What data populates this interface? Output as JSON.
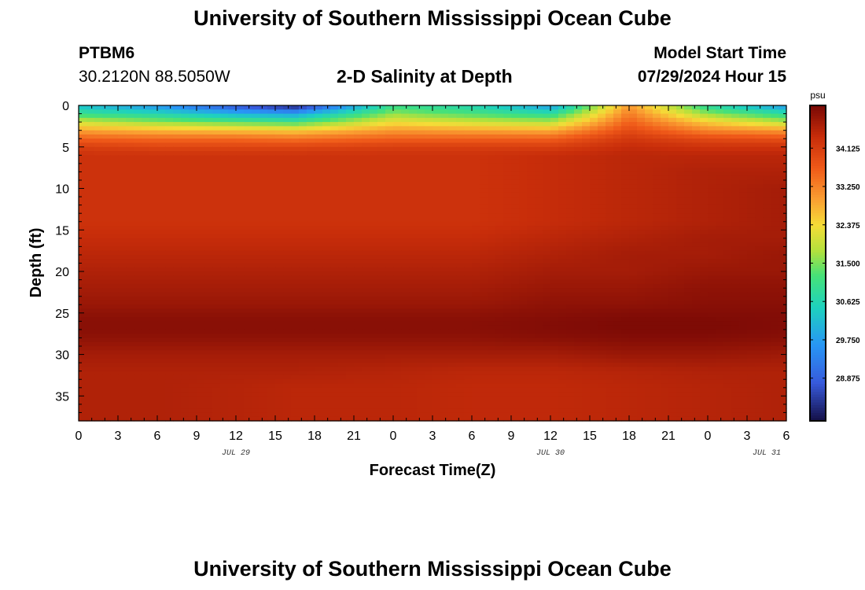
{
  "header": {
    "title": "University of Southern Mississippi Ocean Cube",
    "station": "PTBM6",
    "coords": "30.2120N  88.5050W",
    "subtitle": "2-D Salinity at Depth",
    "model_start_label": "Model Start Time",
    "model_start_value": "07/29/2024 Hour 15"
  },
  "footer": {
    "title": "University of Southern Mississippi Ocean Cube"
  },
  "chart_data": {
    "type": "heatmap",
    "title": "2-D Salinity at Depth",
    "xlabel": "Forecast Time(Z)",
    "ylabel": "Depth (ft)",
    "xlim": [
      0,
      54
    ],
    "ylim": [
      0,
      38
    ],
    "x_ticks": [
      0,
      3,
      6,
      9,
      12,
      15,
      18,
      21,
      24,
      27,
      30,
      33,
      36,
      39,
      42,
      45,
      48,
      51,
      54
    ],
    "x_tick_labels": [
      "0",
      "3",
      "6",
      "9",
      "12",
      "15",
      "18",
      "21",
      "0",
      "3",
      "6",
      "9",
      "12",
      "15",
      "18",
      "21",
      "0",
      "3",
      "6"
    ],
    "y_ticks": [
      0,
      5,
      10,
      15,
      20,
      25,
      30,
      35
    ],
    "y_tick_labels": [
      "0",
      "5",
      "10",
      "15",
      "20",
      "25",
      "30",
      "35"
    ],
    "date_labels": [
      {
        "x": 12,
        "label": "JUL 29"
      },
      {
        "x": 36,
        "label": "JUL 30"
      },
      {
        "x": 52.5,
        "label": "JUL 31"
      }
    ],
    "colorbar": {
      "unit": "psu",
      "min": 27.9,
      "max": 35.1,
      "ticks": [
        28.875,
        29.75,
        30.625,
        31.5,
        32.375,
        33.25,
        34.125
      ],
      "tick_labels": [
        "28.875",
        "29.750",
        "30.625",
        "31.500",
        "32.375",
        "33.250",
        "34.125"
      ]
    },
    "depth_ft": [
      0,
      1,
      2,
      3,
      4,
      5,
      6,
      8,
      10,
      12,
      14,
      16,
      18,
      20,
      22,
      24,
      25,
      26,
      27,
      28,
      30,
      32,
      34,
      36,
      38
    ],
    "hours": [
      0,
      6,
      12,
      16.5,
      24,
      30,
      36,
      42,
      48,
      54
    ],
    "salinity_psu": [
      [
        30.2,
        29.6,
        28.6,
        28.0,
        31.0,
        30.6,
        29.7,
        33.0,
        30.8,
        29.6
      ],
      [
        31.0,
        30.6,
        30.0,
        29.8,
        31.6,
        31.2,
        30.8,
        33.3,
        31.6,
        30.8
      ],
      [
        32.0,
        31.6,
        31.3,
        31.1,
        32.3,
        32.0,
        31.8,
        33.6,
        32.5,
        31.8
      ],
      [
        32.9,
        32.7,
        32.6,
        32.5,
        33.0,
        32.9,
        32.8,
        33.9,
        33.2,
        33.0
      ],
      [
        33.6,
        33.5,
        33.5,
        33.4,
        33.6,
        33.6,
        33.6,
        34.2,
        33.9,
        33.8
      ],
      [
        34.1,
        34.0,
        34.0,
        34.0,
        34.1,
        34.1,
        34.1,
        34.4,
        34.3,
        34.3
      ],
      [
        34.3,
        34.3,
        34.3,
        34.3,
        34.3,
        34.3,
        34.4,
        34.5,
        34.5,
        34.5
      ],
      [
        34.3,
        34.3,
        34.3,
        34.3,
        34.3,
        34.3,
        34.4,
        34.5,
        34.6,
        34.6
      ],
      [
        34.3,
        34.3,
        34.3,
        34.3,
        34.3,
        34.3,
        34.4,
        34.5,
        34.6,
        34.7
      ],
      [
        34.3,
        34.3,
        34.3,
        34.3,
        34.3,
        34.3,
        34.4,
        34.5,
        34.6,
        34.7
      ],
      [
        34.3,
        34.3,
        34.3,
        34.3,
        34.3,
        34.3,
        34.4,
        34.5,
        34.6,
        34.7
      ],
      [
        34.4,
        34.4,
        34.4,
        34.4,
        34.4,
        34.4,
        34.5,
        34.6,
        34.7,
        34.7
      ],
      [
        34.5,
        34.5,
        34.5,
        34.5,
        34.5,
        34.5,
        34.6,
        34.7,
        34.7,
        34.8
      ],
      [
        34.6,
        34.6,
        34.6,
        34.6,
        34.6,
        34.6,
        34.7,
        34.7,
        34.8,
        34.8
      ],
      [
        34.7,
        34.7,
        34.7,
        34.7,
        34.7,
        34.7,
        34.8,
        34.8,
        34.9,
        34.9
      ],
      [
        34.8,
        34.8,
        34.8,
        34.8,
        34.8,
        34.8,
        34.9,
        34.9,
        34.95,
        34.95
      ],
      [
        34.9,
        34.9,
        34.9,
        34.9,
        34.9,
        34.9,
        34.95,
        35.0,
        35.0,
        35.0
      ],
      [
        34.95,
        34.95,
        34.95,
        34.95,
        34.95,
        34.95,
        35.0,
        35.05,
        35.05,
        35.0
      ],
      [
        34.95,
        34.95,
        34.95,
        34.95,
        34.95,
        34.95,
        35.0,
        35.05,
        35.05,
        35.0
      ],
      [
        34.9,
        34.9,
        34.9,
        34.9,
        34.9,
        34.9,
        34.95,
        35.0,
        35.0,
        34.95
      ],
      [
        34.7,
        34.7,
        34.7,
        34.7,
        34.7,
        34.7,
        34.7,
        34.8,
        34.8,
        34.75
      ],
      [
        34.6,
        34.6,
        34.6,
        34.6,
        34.55,
        34.5,
        34.5,
        34.55,
        34.6,
        34.6
      ],
      [
        34.6,
        34.6,
        34.55,
        34.5,
        34.5,
        34.45,
        34.45,
        34.5,
        34.55,
        34.6
      ],
      [
        34.6,
        34.6,
        34.55,
        34.5,
        34.5,
        34.45,
        34.45,
        34.5,
        34.55,
        34.6
      ],
      [
        34.6,
        34.6,
        34.55,
        34.5,
        34.5,
        34.45,
        34.45,
        34.5,
        34.55,
        34.6
      ]
    ]
  }
}
